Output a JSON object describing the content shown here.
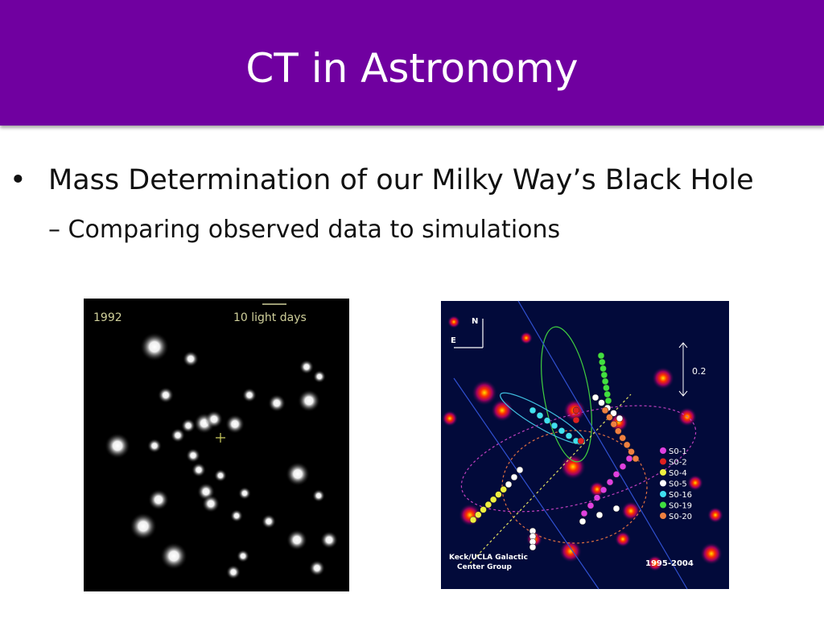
{
  "header": {
    "title": "CT in Astronomy"
  },
  "bullets": [
    {
      "marker": "•",
      "text": "Mass Determination of our Milky Way’s Black Hole",
      "sub": [
        {
          "marker": "–",
          "text": "Comparing observed data to simulations"
        }
      ]
    }
  ],
  "images": [
    {
      "year": "1992",
      "scale_label": "10 light days"
    },
    {
      "north": "N",
      "east": "E",
      "scale_label": "0.2",
      "legend": [
        {
          "name": "S0-1",
          "color": "#e040e0"
        },
        {
          "name": "S0-2",
          "color": "#e02020"
        },
        {
          "name": "S0-4",
          "color": "#f0f040"
        },
        {
          "name": "S0-5",
          "color": "#ffffff"
        },
        {
          "name": "S0-16",
          "color": "#40e0f0"
        },
        {
          "name": "S0-19",
          "color": "#40e040"
        },
        {
          "name": "S0-20",
          "color": "#f08040"
        }
      ],
      "credit": [
        "Keck/UCLA Galactic",
        "Center Group"
      ],
      "years": "1995-2004"
    }
  ]
}
